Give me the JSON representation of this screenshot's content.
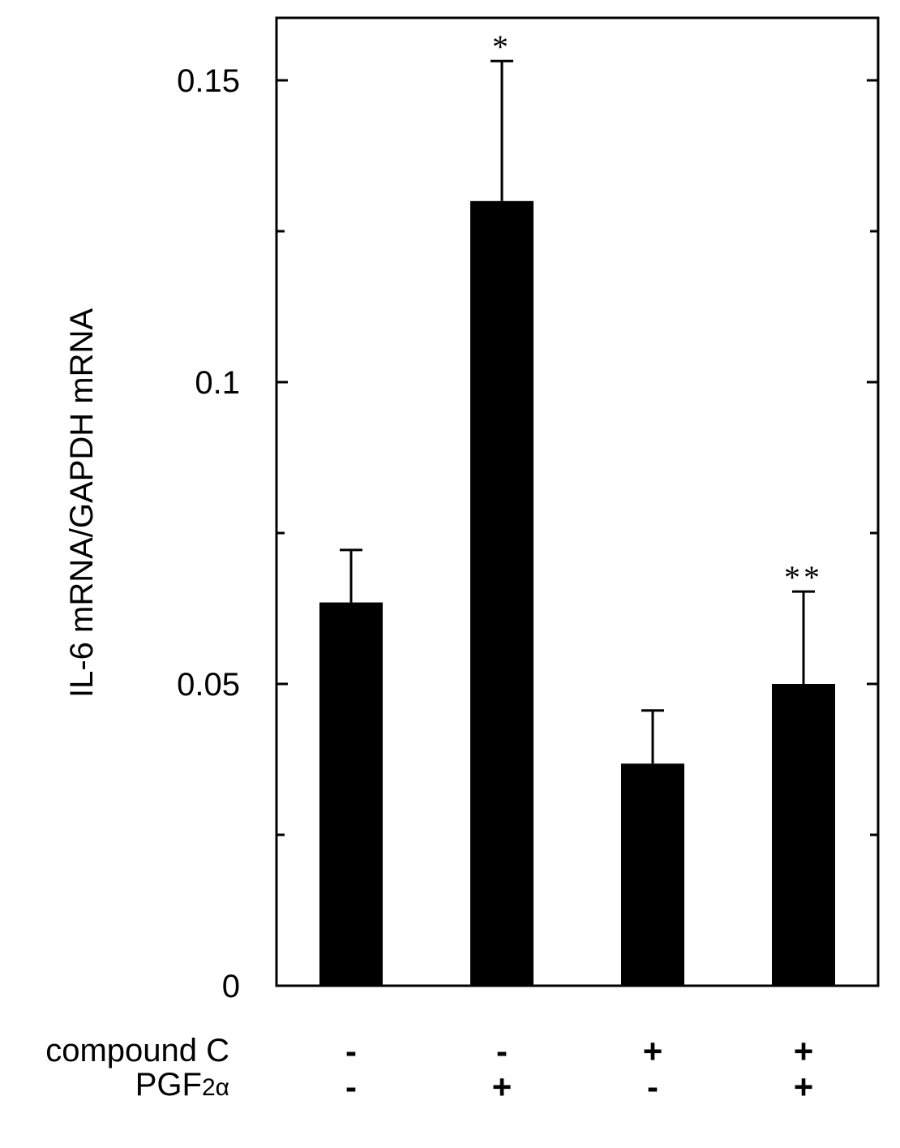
{
  "chart_data": {
    "type": "bar",
    "ylabel": "IL-6 mRNA/GAPDH mRNA",
    "xlabel": "",
    "ylim": [
      0,
      0.16
    ],
    "yticks": [
      {
        "value": 0,
        "label": "0"
      },
      {
        "value": 0.05,
        "label": "0.05"
      },
      {
        "value": 0.1,
        "label": "0.1"
      },
      {
        "value": 0.15,
        "label": "0.15"
      }
    ],
    "minor_yticks": [
      0.025,
      0.075,
      0.125
    ],
    "grid": false,
    "bar_color": "#000000",
    "values": [
      0.0635,
      0.13,
      0.0368,
      0.05
    ],
    "errors": [
      0.0087,
      0.0232,
      0.0088,
      0.0153
    ],
    "annotations": [
      "",
      "*",
      "",
      "**"
    ],
    "conditions": [
      {
        "label_main": "compound C",
        "label_sub": "",
        "values": [
          "-",
          "-",
          "+",
          "+"
        ]
      },
      {
        "label_main": "PGF",
        "label_sub": "2α",
        "values": [
          "-",
          "+",
          "-",
          "+"
        ]
      }
    ]
  }
}
